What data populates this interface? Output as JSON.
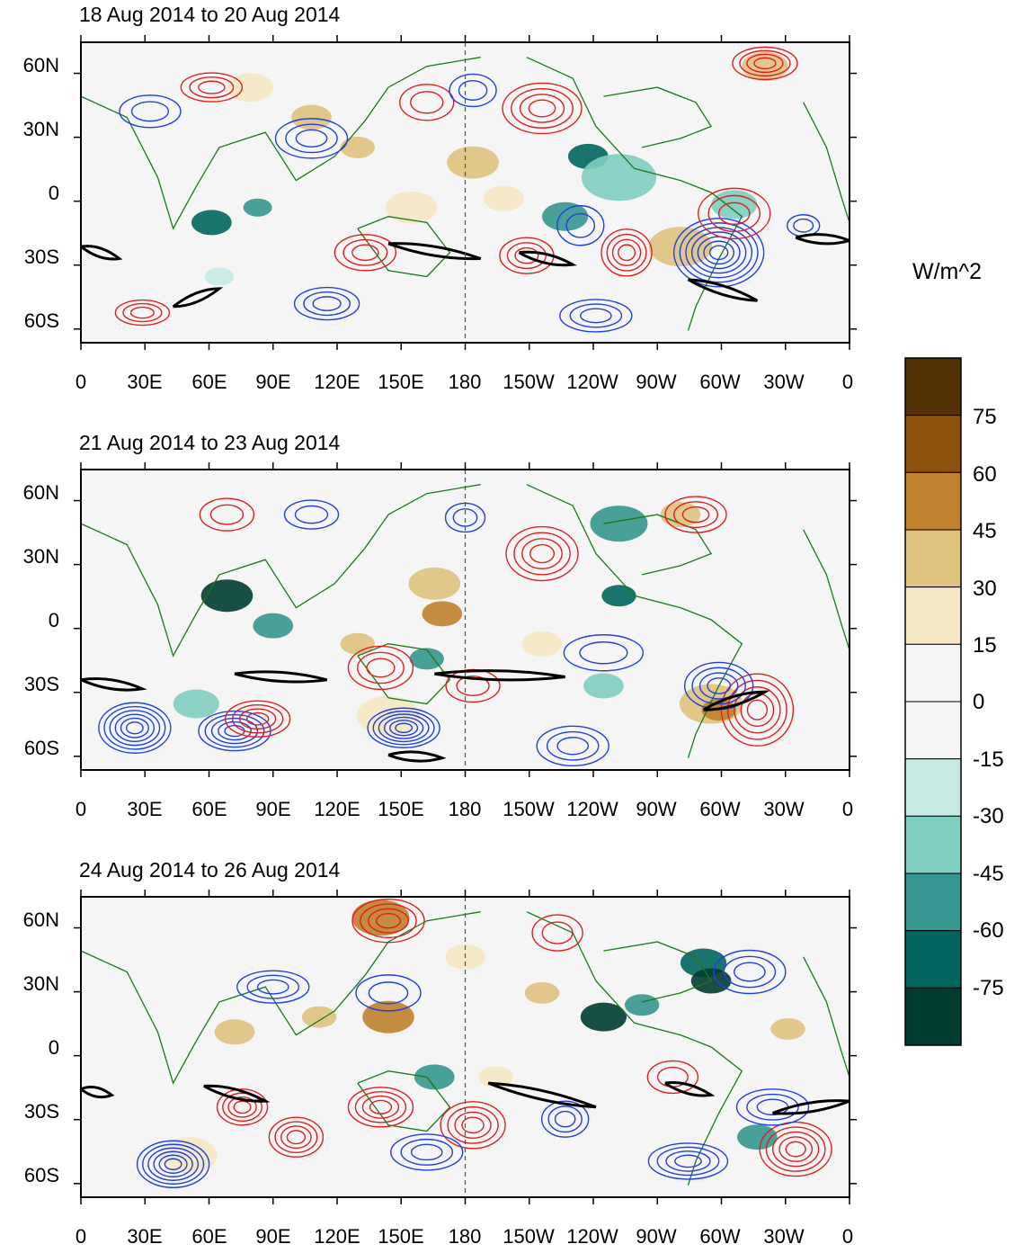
{
  "panels": [
    {
      "title": "18 Aug 2014 to 20 Aug 2014",
      "lat_labels": [
        "60N",
        "30N",
        "0",
        "30S",
        "60S"
      ],
      "lon_labels": [
        "0",
        "30E",
        "60E",
        "90E",
        "120E",
        "150E",
        "180",
        "150W",
        "120W",
        "90W",
        "60W",
        "30W",
        "0"
      ]
    },
    {
      "title": "21 Aug 2014 to 23 Aug 2014",
      "lat_labels": [
        "60N",
        "30N",
        "0",
        "30S",
        "60S"
      ],
      "lon_labels": [
        "0",
        "30E",
        "60E",
        "90E",
        "120E",
        "150E",
        "180",
        "150W",
        "120W",
        "90W",
        "60W",
        "30W",
        "0"
      ]
    },
    {
      "title": "24 Aug 2014 to 26 Aug 2014",
      "lat_labels": [
        "60N",
        "30N",
        "0",
        "30S",
        "60S"
      ],
      "lon_labels": [
        "0",
        "30E",
        "60E",
        "90E",
        "120E",
        "150E",
        "180",
        "150W",
        "120W",
        "90W",
        "60W",
        "30W",
        "0"
      ]
    }
  ],
  "colorbar": {
    "units": "W/m^2",
    "labels": [
      "75",
      "60",
      "45",
      "30",
      "15",
      "0",
      "-15",
      "-30",
      "-45",
      "-60",
      "-75"
    ],
    "colors": [
      "#543005",
      "#8c510a",
      "#bf812d",
      "#dfc27d",
      "#f6e8c3",
      "#f5f5f5",
      "#f5f5f5",
      "#c7eae5",
      "#80cdc1",
      "#35978f",
      "#01665e",
      "#003c30"
    ]
  },
  "contour_colors": {
    "positive": "#e02020",
    "negative": "#2040e0",
    "threshold": "#000000",
    "coast": "#1a7a1a"
  }
}
